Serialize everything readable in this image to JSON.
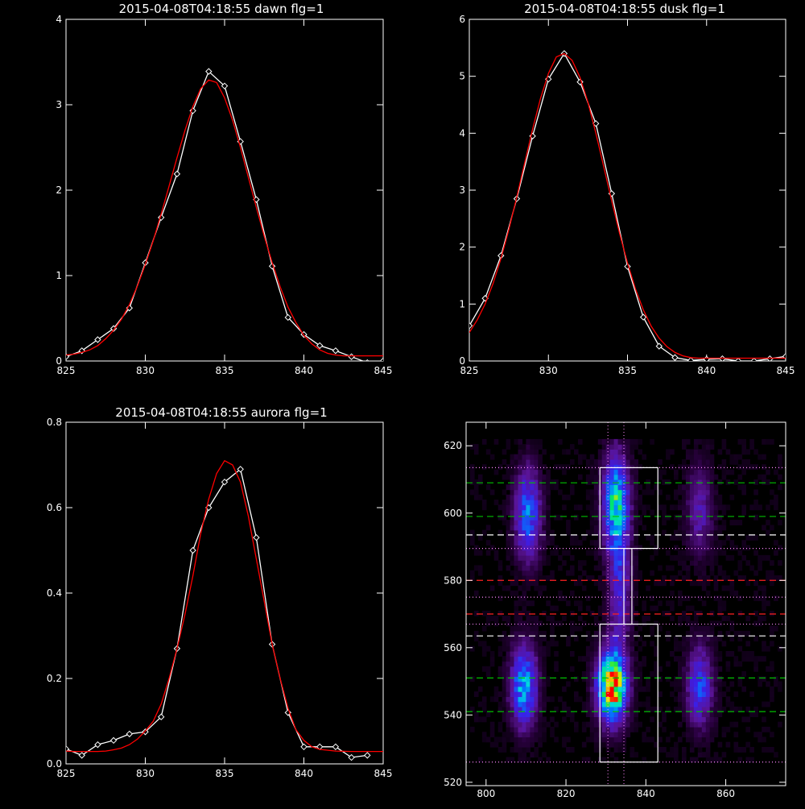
{
  "chart_data": [
    {
      "type": "line",
      "title": "2015-04-08T04:18:55 dawn flg=1",
      "xlim": [
        825,
        845
      ],
      "ylim": [
        0,
        4
      ],
      "xticks": [
        "825",
        "830",
        "835",
        "840",
        "845"
      ],
      "yticks": [
        "0",
        "1",
        "2",
        "3",
        "4"
      ],
      "series": [
        {
          "color": "#ffffff",
          "markers": "diamond",
          "x": [
            825,
            826,
            827,
            828,
            829,
            830,
            831,
            832,
            833,
            834,
            835,
            836,
            837,
            838,
            839,
            840,
            841,
            842,
            843,
            844,
            845
          ],
          "y": [
            0.05,
            0.12,
            0.25,
            0.38,
            0.62,
            1.15,
            1.68,
            2.19,
            2.93,
            3.39,
            3.22,
            2.57,
            1.89,
            1.11,
            0.51,
            0.31,
            0.18,
            0.12,
            0.05,
            -0.02,
            0.0
          ]
        },
        {
          "color": "#ff0000",
          "markers": "none",
          "x": [
            825,
            825.5,
            826,
            826.5,
            827,
            827.5,
            828,
            828.5,
            829,
            829.5,
            830,
            830.5,
            831,
            831.5,
            832,
            832.5,
            833,
            833.5,
            834,
            834.5,
            835,
            835.5,
            836,
            836.5,
            837,
            837.5,
            838,
            838.5,
            839,
            839.5,
            840,
            840.5,
            841,
            841.5,
            842,
            842.5,
            843,
            843.5,
            844,
            844.5,
            845
          ],
          "y": [
            0.07,
            0.08,
            0.1,
            0.13,
            0.18,
            0.26,
            0.36,
            0.49,
            0.66,
            0.88,
            1.13,
            1.41,
            1.72,
            2.05,
            2.38,
            2.7,
            2.98,
            3.19,
            3.29,
            3.26,
            3.08,
            2.82,
            2.5,
            2.15,
            1.8,
            1.46,
            1.15,
            0.87,
            0.63,
            0.45,
            0.3,
            0.2,
            0.13,
            0.09,
            0.07,
            0.06,
            0.06,
            0.06,
            0.06,
            0.06,
            0.06
          ]
        }
      ]
    },
    {
      "type": "line",
      "title": "2015-04-08T04:18:55 dusk flg=1",
      "xlim": [
        825,
        845
      ],
      "ylim": [
        0,
        6
      ],
      "xticks": [
        "825",
        "830",
        "835",
        "840",
        "845"
      ],
      "yticks": [
        "0",
        "1",
        "2",
        "3",
        "4",
        "5",
        "6"
      ],
      "series": [
        {
          "color": "#ffffff",
          "markers": "diamond",
          "x": [
            825,
            826,
            827,
            828,
            829,
            830,
            831,
            832,
            833,
            834,
            835,
            836,
            837,
            838,
            839,
            840,
            841,
            842,
            843,
            844,
            845
          ],
          "y": [
            0.62,
            1.1,
            1.85,
            2.85,
            3.95,
            4.95,
            5.4,
            4.9,
            4.17,
            2.94,
            1.66,
            0.77,
            0.26,
            0.06,
            0.01,
            0.03,
            0.04,
            0.0,
            0.0,
            0.04,
            0.08
          ]
        },
        {
          "color": "#ff0000",
          "markers": "none",
          "x": [
            825,
            825.5,
            826,
            826.5,
            827,
            827.5,
            828,
            828.5,
            829,
            829.5,
            830,
            830.5,
            831,
            831.5,
            832,
            832.5,
            833,
            833.5,
            834,
            834.5,
            835,
            835.5,
            836,
            836.5,
            837,
            837.5,
            838,
            838.5,
            839,
            839.5,
            840,
            841,
            842,
            843,
            844,
            845
          ],
          "y": [
            0.5,
            0.72,
            1.0,
            1.36,
            1.8,
            2.31,
            2.88,
            3.48,
            4.07,
            4.61,
            5.05,
            5.34,
            5.4,
            5.28,
            4.98,
            4.54,
            4.0,
            3.41,
            2.81,
            2.24,
            1.72,
            1.27,
            0.9,
            0.61,
            0.4,
            0.25,
            0.15,
            0.09,
            0.06,
            0.05,
            0.05,
            0.05,
            0.05,
            0.05,
            0.05,
            0.05
          ]
        }
      ]
    },
    {
      "type": "line",
      "title": "2015-04-08T04:18:55 aurora flg=1",
      "xlim": [
        825,
        845
      ],
      "ylim": [
        0,
        0.8
      ],
      "xticks": [
        "825",
        "830",
        "835",
        "840",
        "845"
      ],
      "yticks": [
        "0.0",
        "0.2",
        "0.4",
        "0.6",
        "0.8"
      ],
      "series": [
        {
          "color": "#ffffff",
          "markers": "diamond",
          "x": [
            825,
            826,
            827,
            828,
            829,
            830,
            831,
            832,
            833,
            834,
            835,
            836,
            837,
            838,
            839,
            840,
            841,
            842,
            843,
            844
          ],
          "y": [
            0.035,
            0.02,
            0.045,
            0.055,
            0.07,
            0.075,
            0.11,
            0.27,
            0.5,
            0.6,
            0.66,
            0.69,
            0.53,
            0.28,
            0.12,
            0.04,
            0.04,
            0.04,
            0.015,
            0.02
          ]
        },
        {
          "color": "#ff0000",
          "markers": "none",
          "x": [
            825,
            825.5,
            826,
            826.5,
            827,
            827.5,
            828,
            828.5,
            829,
            829.5,
            830,
            830.5,
            831,
            831.5,
            832,
            832.5,
            833,
            833.5,
            834,
            834.5,
            835,
            835.5,
            836,
            836.5,
            837,
            837.5,
            838,
            838.5,
            839,
            839.5,
            840,
            840.5,
            841,
            842,
            843,
            844,
            845
          ],
          "y": [
            0.03,
            0.029,
            0.029,
            0.029,
            0.029,
            0.03,
            0.033,
            0.037,
            0.045,
            0.058,
            0.077,
            0.1,
            0.14,
            0.2,
            0.27,
            0.35,
            0.44,
            0.54,
            0.62,
            0.68,
            0.71,
            0.7,
            0.66,
            0.58,
            0.48,
            0.38,
            0.28,
            0.2,
            0.13,
            0.08,
            0.055,
            0.04,
            0.034,
            0.03,
            0.029,
            0.029,
            0.029
          ]
        }
      ]
    },
    {
      "type": "heatmap",
      "title": "",
      "xlim": [
        795,
        875
      ],
      "ylim": [
        519,
        627
      ],
      "xticks": [
        "800",
        "820",
        "840",
        "860"
      ],
      "yticks": [
        "520",
        "540",
        "560",
        "580",
        "600",
        "620"
      ],
      "blobs": [
        {
          "x": 810,
          "y": 599,
          "sx": 2.2,
          "sy": 9,
          "amp": 0.45
        },
        {
          "x": 809,
          "y": 548,
          "sx": 2.2,
          "sy": 8,
          "amp": 0.55
        },
        {
          "x": 832,
          "y": 602,
          "sx": 2.2,
          "sy": 10,
          "amp": 0.62
        },
        {
          "x": 831,
          "y": 548,
          "sx": 2.4,
          "sy": 7,
          "amp": 1.0
        },
        {
          "x": 833,
          "y": 576,
          "sx": 1.8,
          "sy": 12,
          "amp": 0.28
        },
        {
          "x": 853,
          "y": 600,
          "sx": 2.2,
          "sy": 9,
          "amp": 0.22
        },
        {
          "x": 853,
          "y": 548,
          "sx": 2.2,
          "sy": 8,
          "amp": 0.38
        }
      ],
      "hlines": [
        {
          "y": 613.5,
          "color": "#ff88ff",
          "style": "dotted"
        },
        {
          "y": 609.0,
          "color": "#00c000",
          "style": "dashed"
        },
        {
          "y": 599.0,
          "color": "#00c000",
          "style": "dashed"
        },
        {
          "y": 593.5,
          "color": "#ffffff",
          "style": "dashed"
        },
        {
          "y": 589.5,
          "color": "#ff88ff",
          "style": "dotted"
        },
        {
          "y": 580.0,
          "color": "#ff2020",
          "style": "dashed"
        },
        {
          "y": 575.0,
          "color": "#ff88ff",
          "style": "dotted"
        },
        {
          "y": 570.0,
          "color": "#ff2020",
          "style": "dashed"
        },
        {
          "y": 567.0,
          "color": "#ff88ff",
          "style": "dotted"
        },
        {
          "y": 563.5,
          "color": "#ffffff",
          "style": "dashed"
        },
        {
          "y": 551.0,
          "color": "#00c000",
          "style": "dashed"
        },
        {
          "y": 541.0,
          "color": "#00c000",
          "style": "dashed"
        },
        {
          "y": 526.0,
          "color": "#ff88ff",
          "style": "dotted"
        }
      ],
      "vlines": [
        {
          "x": 830.5,
          "color": "#ff88ff",
          "style": "dotted"
        },
        {
          "x": 834.5,
          "color": "#ff88ff",
          "style": "dotted"
        }
      ],
      "boxes": [
        {
          "x0": 828.5,
          "x1": 843,
          "y0": 589.5,
          "y1": 613.5
        },
        {
          "x0": 828.5,
          "x1": 843,
          "y0": 526,
          "y1": 567
        },
        {
          "x0": 834.5,
          "x1": 836.5,
          "y0": 567,
          "y1": 589.5
        }
      ]
    }
  ]
}
